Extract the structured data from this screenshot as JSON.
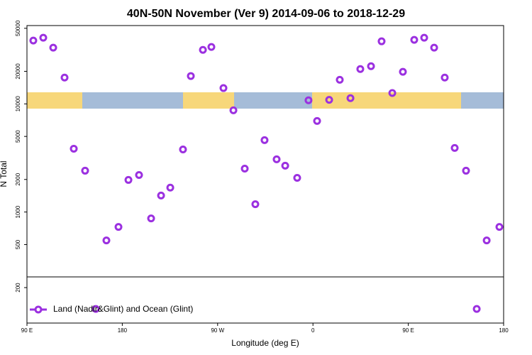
{
  "chart_data": {
    "type": "scatter",
    "title": "40N-50N November (Ver 9)   2014-09-06 to 2018-12-29",
    "xlabel": "Longitude (deg E)",
    "ylabel": "N Total",
    "log_y": true,
    "legend": "bottom left",
    "xlim": [
      90,
      540
    ],
    "ylim": [
      94,
      53000
    ],
    "xticks": [
      {
        "value": 90,
        "label": "90 E"
      },
      180,
      {
        "value": 270,
        "label": "90 W"
      },
      {
        "value": 360,
        "label": "0"
      },
      {
        "value": 450,
        "label": "90 E"
      },
      {
        "value": 540,
        "label": "180"
      }
    ],
    "yticks": [
      200,
      500,
      1000,
      2000,
      5000,
      10000,
      20000,
      50000
    ],
    "series": [
      {
        "name": "Land (Nadir&Glint) and Ocean (Glint)",
        "color": "#9b30e0",
        "x": [
          96.0,
          105.4,
          114.8,
          125.5,
          134.2,
          144.9,
          155.0,
          165.0,
          176.4,
          185.8,
          195.8,
          207.2,
          216.6,
          225.3,
          237.3,
          244.7,
          256.1,
          264.1,
          275.5,
          284.9,
          295.6,
          305.6,
          314.3,
          325.7,
          333.8,
          345.1,
          355.8,
          363.9,
          375.3,
          385.3,
          395.4,
          404.7,
          414.8,
          424.8,
          434.9,
          444.9,
          455.6,
          465.0,
          474.4,
          484.4,
          493.8,
          504.5,
          514.6,
          524.0,
          536.0
        ],
        "values": [
          38500,
          40900,
          33100,
          17500,
          3850,
          2410,
          127,
          546,
          728,
          1980,
          2200,
          873,
          1420,
          1680,
          3790,
          18100,
          31600,
          33600,
          14000,
          8720,
          2520,
          1180,
          4620,
          3070,
          2680,
          2070,
          10800,
          6950,
          10900,
          16700,
          11300,
          21000,
          22300,
          37900,
          12600,
          19800,
          39100,
          40900,
          33100,
          17500,
          3910,
          2410,
          127,
          546,
          728
        ]
      }
    ]
  }
}
